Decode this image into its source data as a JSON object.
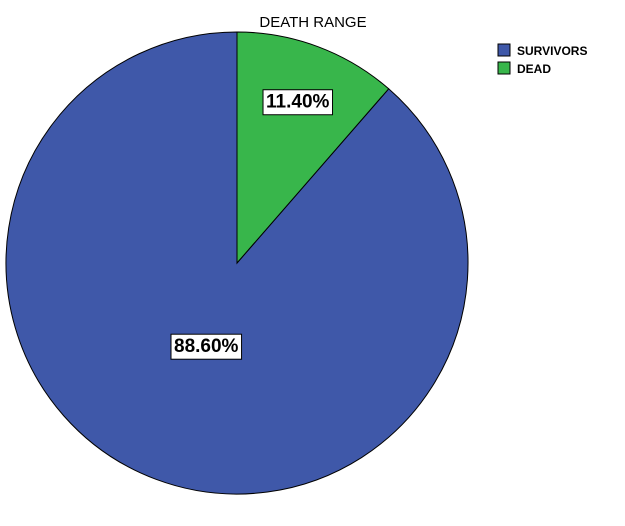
{
  "chart_data": {
    "type": "pie",
    "title": "DEATH RANGE",
    "categories": [
      "SURVIVORS",
      "DEAD"
    ],
    "values": [
      88.6,
      11.4
    ],
    "labels": [
      "88.60%",
      "11.40%"
    ],
    "colors": [
      "#3F58A9",
      "#38B64B"
    ],
    "legend_position": "top-right",
    "start_direction": "top",
    "slice_order": "counterclockwise"
  }
}
